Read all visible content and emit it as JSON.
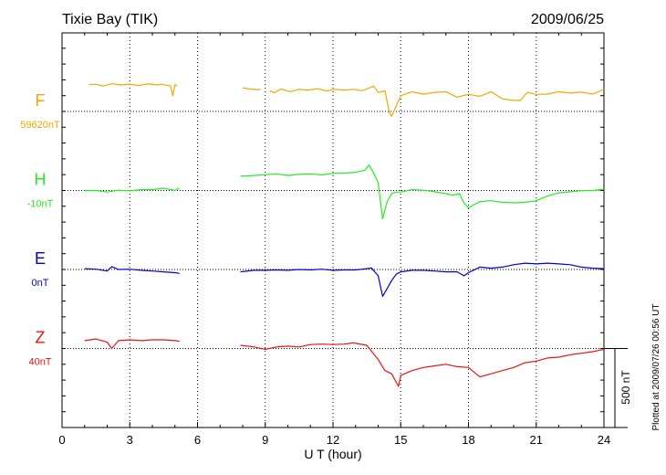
{
  "header": {
    "station": "Tixie Bay (TIK)",
    "date": "2009/06/25"
  },
  "footer_note": "Plotted at 2009/07/26 00:56 UT",
  "chart_data": {
    "type": "line",
    "xlabel": "U T (hour)",
    "xlim": [
      0,
      24
    ],
    "xticks": [
      0,
      3,
      6,
      9,
      12,
      15,
      18,
      21,
      24
    ],
    "grid": true,
    "scale_bar": {
      "label": "500 nT",
      "value_nT": 500
    },
    "plot_range_nT": [
      -1000,
      1000
    ],
    "series": [
      {
        "name": "F",
        "baseline_label": "59620nT",
        "baseline_nT": 59620,
        "offset_nT": 500,
        "color": "#f0a800",
        "segments": [
          [
            [
              1.2,
              59790
            ],
            [
              1.5,
              59792
            ],
            [
              1.8,
              59780
            ],
            [
              2.2,
              59795
            ],
            [
              2.6,
              59788
            ],
            [
              3.0,
              59792
            ],
            [
              3.4,
              59785
            ],
            [
              3.8,
              59794
            ],
            [
              4.2,
              59788
            ],
            [
              4.4,
              59792
            ],
            [
              4.6,
              59786
            ],
            [
              4.8,
              59783
            ],
            [
              4.9,
              59720
            ],
            [
              5.0,
              59790
            ],
            [
              5.1,
              59782
            ]
          ],
          [
            [
              8.0,
              59770
            ],
            [
              8.3,
              59762
            ],
            [
              8.6,
              59758
            ],
            [
              8.8,
              59760
            ]
          ],
          [
            [
              9.2,
              59752
            ],
            [
              9.4,
              59738
            ],
            [
              9.7,
              59762
            ],
            [
              10.1,
              59745
            ],
            [
              10.5,
              59760
            ],
            [
              10.9,
              59755
            ],
            [
              11.3,
              59764
            ],
            [
              11.7,
              59750
            ],
            [
              12.1,
              59760
            ],
            [
              12.5,
              59755
            ],
            [
              12.9,
              59760
            ],
            [
              13.3,
              59752
            ],
            [
              13.8,
              59780
            ],
            [
              14.0,
              59740
            ],
            [
              14.3,
              59750
            ],
            [
              14.5,
              59610
            ],
            [
              14.6,
              59590
            ],
            [
              15.0,
              59720
            ],
            [
              15.5,
              59745
            ],
            [
              16.0,
              59730
            ],
            [
              16.5,
              59740
            ],
            [
              17.0,
              59745
            ],
            [
              17.5,
              59710
            ],
            [
              18.0,
              59728
            ],
            [
              18.5,
              59716
            ],
            [
              19.0,
              59745
            ],
            [
              19.5,
              59700
            ],
            [
              20.0,
              59690
            ],
            [
              20.3,
              59690
            ],
            [
              20.6,
              59740
            ],
            [
              21.0,
              59728
            ],
            [
              21.5,
              59730
            ],
            [
              22.0,
              59745
            ],
            [
              22.5,
              59736
            ],
            [
              23.0,
              59742
            ],
            [
              23.5,
              59730
            ],
            [
              24.0,
              59760
            ]
          ]
        ]
      },
      {
        "name": "H",
        "baseline_label": "-10nT",
        "baseline_nT": -10,
        "offset_nT": 0,
        "color": "#22ee22",
        "segments": [
          [
            [
              1.0,
              -10
            ],
            [
              1.5,
              -10
            ],
            [
              2.0,
              -20
            ],
            [
              2.5,
              -8
            ],
            [
              3.0,
              -12
            ],
            [
              3.5,
              -5
            ],
            [
              4.0,
              -5
            ],
            [
              4.5,
              5
            ],
            [
              5.0,
              -10
            ],
            [
              5.2,
              5
            ]
          ],
          [
            [
              7.9,
              80
            ],
            [
              8.5,
              85
            ],
            [
              9.0,
              90
            ],
            [
              9.5,
              95
            ],
            [
              10.0,
              85
            ],
            [
              10.5,
              92
            ],
            [
              11.0,
              95
            ],
            [
              11.5,
              88
            ],
            [
              12.0,
              98
            ],
            [
              12.5,
              100
            ],
            [
              13.0,
              105
            ],
            [
              13.4,
              118
            ],
            [
              13.6,
              150
            ],
            [
              13.8,
              100
            ],
            [
              14.0,
              40
            ],
            [
              14.1,
              -80
            ],
            [
              14.2,
              -190
            ],
            [
              14.4,
              -80
            ],
            [
              14.6,
              -30
            ],
            [
              14.8,
              -20
            ],
            [
              15.0,
              -20
            ],
            [
              15.5,
              -5
            ],
            [
              16.0,
              -8
            ],
            [
              16.5,
              -18
            ],
            [
              17.0,
              -30
            ],
            [
              17.3,
              -40
            ],
            [
              17.6,
              -30
            ],
            [
              17.8,
              -90
            ],
            [
              18.0,
              -120
            ],
            [
              18.5,
              -80
            ],
            [
              19.0,
              -75
            ],
            [
              19.5,
              -85
            ],
            [
              20.0,
              -88
            ],
            [
              20.5,
              -85
            ],
            [
              21.0,
              -75
            ],
            [
              21.5,
              -45
            ],
            [
              22.0,
              -25
            ],
            [
              22.5,
              -18
            ],
            [
              23.0,
              -12
            ],
            [
              23.5,
              -10
            ],
            [
              24.0,
              -2
            ]
          ]
        ]
      },
      {
        "name": "E",
        "baseline_label": "0nT",
        "baseline_nT": 0,
        "offset_nT": -500,
        "color": "#0000cc",
        "segments": [
          [
            [
              1.0,
              5
            ],
            [
              1.5,
              2
            ],
            [
              2.0,
              -10
            ],
            [
              2.2,
              18
            ],
            [
              2.5,
              0
            ],
            [
              3.0,
              2
            ],
            [
              3.5,
              -5
            ],
            [
              4.0,
              -10
            ],
            [
              4.5,
              -15
            ],
            [
              5.0,
              -20
            ],
            [
              5.2,
              -25
            ]
          ],
          [
            [
              7.9,
              -15
            ],
            [
              8.5,
              -5
            ],
            [
              9.0,
              -5
            ],
            [
              9.5,
              -3
            ],
            [
              10.0,
              -5
            ],
            [
              10.5,
              0
            ],
            [
              11.0,
              -3
            ],
            [
              11.5,
              2
            ],
            [
              12.0,
              -5
            ],
            [
              12.5,
              -3
            ],
            [
              13.0,
              -3
            ],
            [
              13.5,
              5
            ],
            [
              13.7,
              10
            ],
            [
              14.0,
              -40
            ],
            [
              14.2,
              -170
            ],
            [
              14.4,
              -120
            ],
            [
              14.6,
              -70
            ],
            [
              14.8,
              -30
            ],
            [
              15.0,
              -15
            ],
            [
              15.5,
              -5
            ],
            [
              16.0,
              -5
            ],
            [
              16.5,
              -10
            ],
            [
              17.0,
              -15
            ],
            [
              17.5,
              -15
            ],
            [
              17.8,
              -40
            ],
            [
              18.0,
              -20
            ],
            [
              18.5,
              15
            ],
            [
              19.0,
              8
            ],
            [
              19.5,
              15
            ],
            [
              20.0,
              30
            ],
            [
              20.5,
              40
            ],
            [
              21.0,
              35
            ],
            [
              21.5,
              40
            ],
            [
              22.0,
              35
            ],
            [
              22.5,
              30
            ],
            [
              23.0,
              15
            ],
            [
              23.5,
              8
            ],
            [
              24.0,
              5
            ]
          ]
        ]
      },
      {
        "name": "Z",
        "baseline_label": "40nT",
        "baseline_nT": 40,
        "offset_nT": -1000,
        "color": "#ee1111",
        "segments": [
          [
            [
              1.0,
              90
            ],
            [
              1.5,
              100
            ],
            [
              2.0,
              80
            ],
            [
              2.2,
              40
            ],
            [
              2.5,
              90
            ],
            [
              3.0,
              95
            ],
            [
              3.5,
              90
            ],
            [
              4.0,
              95
            ],
            [
              4.5,
              95
            ],
            [
              5.0,
              90
            ],
            [
              5.2,
              85
            ]
          ],
          [
            [
              7.9,
              60
            ],
            [
              8.5,
              50
            ],
            [
              9.0,
              35
            ],
            [
              9.5,
              50
            ],
            [
              10.0,
              55
            ],
            [
              10.5,
              50
            ],
            [
              11.0,
              65
            ],
            [
              11.5,
              68
            ],
            [
              12.0,
              65
            ],
            [
              12.5,
              68
            ],
            [
              12.9,
              75
            ],
            [
              13.5,
              60
            ],
            [
              14.0,
              -30
            ],
            [
              14.3,
              -100
            ],
            [
              14.6,
              -120
            ],
            [
              14.9,
              -200
            ],
            [
              15.0,
              -130
            ],
            [
              15.5,
              -100
            ],
            [
              16.0,
              -80
            ],
            [
              16.5,
              -70
            ],
            [
              17.0,
              -60
            ],
            [
              17.5,
              -75
            ],
            [
              18.0,
              -80
            ],
            [
              18.5,
              -140
            ],
            [
              19.0,
              -120
            ],
            [
              19.5,
              -100
            ],
            [
              20.0,
              -80
            ],
            [
              20.5,
              -50
            ],
            [
              21.0,
              -40
            ],
            [
              21.5,
              -20
            ],
            [
              22.0,
              -15
            ],
            [
              22.5,
              0
            ],
            [
              23.0,
              10
            ],
            [
              23.5,
              20
            ],
            [
              24.0,
              35
            ]
          ]
        ]
      }
    ]
  }
}
